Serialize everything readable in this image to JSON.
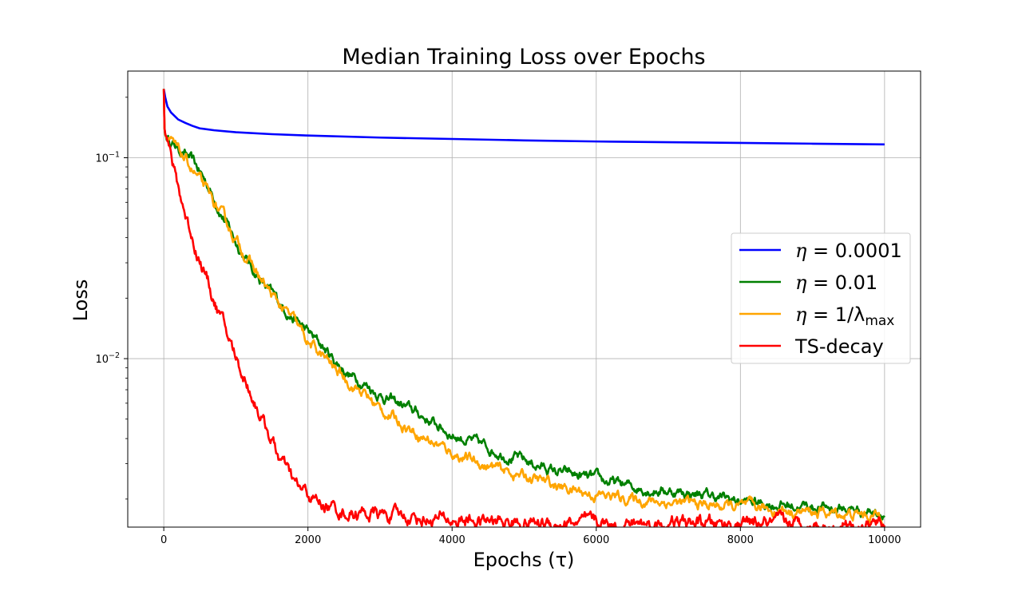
{
  "chart_data": {
    "type": "line",
    "title": "Median Training Loss over Epochs",
    "xlabel": "Epochs (τ)",
    "ylabel": "Loss",
    "xlim": [
      -500,
      10500
    ],
    "ylim": [
      0.00145,
      0.27
    ],
    "yscale": "log",
    "grid": true,
    "legend_position": "center-right",
    "x_ticks": [
      0,
      2000,
      4000,
      6000,
      8000,
      10000
    ],
    "x_tick_labels": [
      "0",
      "2000",
      "4000",
      "6000",
      "8000",
      "10000"
    ],
    "y_ticks": [
      0.1,
      0.01
    ],
    "y_tick_labels": [
      {
        "base": "10",
        "exp": "−1"
      },
      {
        "base": "10",
        "exp": "−2"
      }
    ],
    "series": [
      {
        "name": "η = 0.0001",
        "legend": {
          "symbol": "η",
          "rest": " = 0.0001",
          "sub": ""
        },
        "color": "#0000ff",
        "noise": 0,
        "x": [
          0,
          20,
          50,
          100,
          200,
          300,
          400,
          500,
          700,
          1000,
          1500,
          2000,
          3000,
          4000,
          5000,
          6000,
          7000,
          8000,
          9000,
          10000
        ],
        "y": [
          0.22,
          0.2,
          0.18,
          0.168,
          0.155,
          0.149,
          0.144,
          0.14,
          0.137,
          0.134,
          0.131,
          0.129,
          0.126,
          0.124,
          0.122,
          0.1205,
          0.1195,
          0.1185,
          0.1175,
          0.1165
        ]
      },
      {
        "name": "η = 0.01",
        "legend": {
          "symbol": "η",
          "rest": " = 0.01",
          "sub": ""
        },
        "color": "#008000",
        "noise": 0.035,
        "x": [
          0,
          10,
          20,
          50,
          100,
          200,
          300,
          400,
          500,
          600,
          700,
          800,
          900,
          1000,
          1200,
          1400,
          1600,
          1800,
          2000,
          2200,
          2400,
          2600,
          2800,
          3000,
          3500,
          4000,
          4500,
          5000,
          5500,
          6000,
          6500,
          7000,
          7500,
          8000,
          8500,
          9000,
          9500,
          10000
        ],
        "y": [
          0.22,
          0.14,
          0.13,
          0.125,
          0.12,
          0.112,
          0.104,
          0.095,
          0.085,
          0.074,
          0.063,
          0.053,
          0.045,
          0.038,
          0.029,
          0.023,
          0.019,
          0.016,
          0.0135,
          0.0115,
          0.0095,
          0.0082,
          0.0075,
          0.0066,
          0.0054,
          0.0042,
          0.0036,
          0.0031,
          0.0027,
          0.0025,
          0.0023,
          0.0022,
          0.0021,
          0.00195,
          0.00188,
          0.00183,
          0.00178,
          0.00172
        ]
      },
      {
        "name": "η = 1/λmax",
        "legend": {
          "symbol": "η",
          "rest": " = 1/λ",
          "sub": "max"
        },
        "color": "#ffa500",
        "noise": 0.035,
        "x": [
          0,
          10,
          20,
          50,
          100,
          200,
          300,
          400,
          500,
          600,
          700,
          800,
          900,
          1000,
          1200,
          1400,
          1600,
          1800,
          2000,
          2200,
          2400,
          2600,
          2800,
          3000,
          3500,
          4000,
          4500,
          5000,
          5500,
          6000,
          6500,
          7000,
          7500,
          8000,
          8500,
          9000,
          9500,
          10000
        ],
        "y": [
          0.22,
          0.14,
          0.13,
          0.123,
          0.117,
          0.107,
          0.097,
          0.087,
          0.077,
          0.067,
          0.059,
          0.052,
          0.045,
          0.039,
          0.03,
          0.023,
          0.0185,
          0.0155,
          0.012,
          0.0103,
          0.0087,
          0.0075,
          0.0066,
          0.0056,
          0.0043,
          0.0034,
          0.0029,
          0.0026,
          0.0023,
          0.0021,
          0.002,
          0.00193,
          0.00187,
          0.00182,
          0.00177,
          0.00172,
          0.00168,
          0.00164
        ]
      },
      {
        "name": "TS-decay",
        "legend": {
          "symbol": "",
          "rest": "TS-decay",
          "sub": ""
        },
        "color": "#ff0000",
        "noise": 0.045,
        "x": [
          0,
          10,
          20,
          50,
          100,
          150,
          200,
          300,
          400,
          500,
          600,
          700,
          800,
          900,
          1000,
          1100,
          1200,
          1300,
          1400,
          1500,
          1600,
          1700,
          1800,
          1900,
          2000,
          2100,
          2200,
          2300,
          2400,
          2500,
          2700,
          3000,
          3500,
          4000,
          5000,
          6000,
          7000,
          8000,
          9000,
          10000
        ],
        "y": [
          0.22,
          0.14,
          0.132,
          0.12,
          0.1,
          0.083,
          0.07,
          0.052,
          0.04,
          0.031,
          0.025,
          0.0195,
          0.0155,
          0.0125,
          0.0102,
          0.0083,
          0.0069,
          0.0057,
          0.0047,
          0.0039,
          0.0032,
          0.0028,
          0.0024,
          0.0022,
          0.0021,
          0.00197,
          0.00188,
          0.00182,
          0.00178,
          0.00172,
          0.0017,
          0.00167,
          0.00162,
          0.00156,
          0.00153,
          0.00151,
          0.0015,
          0.001495,
          0.00149,
          0.001485
        ]
      }
    ]
  }
}
